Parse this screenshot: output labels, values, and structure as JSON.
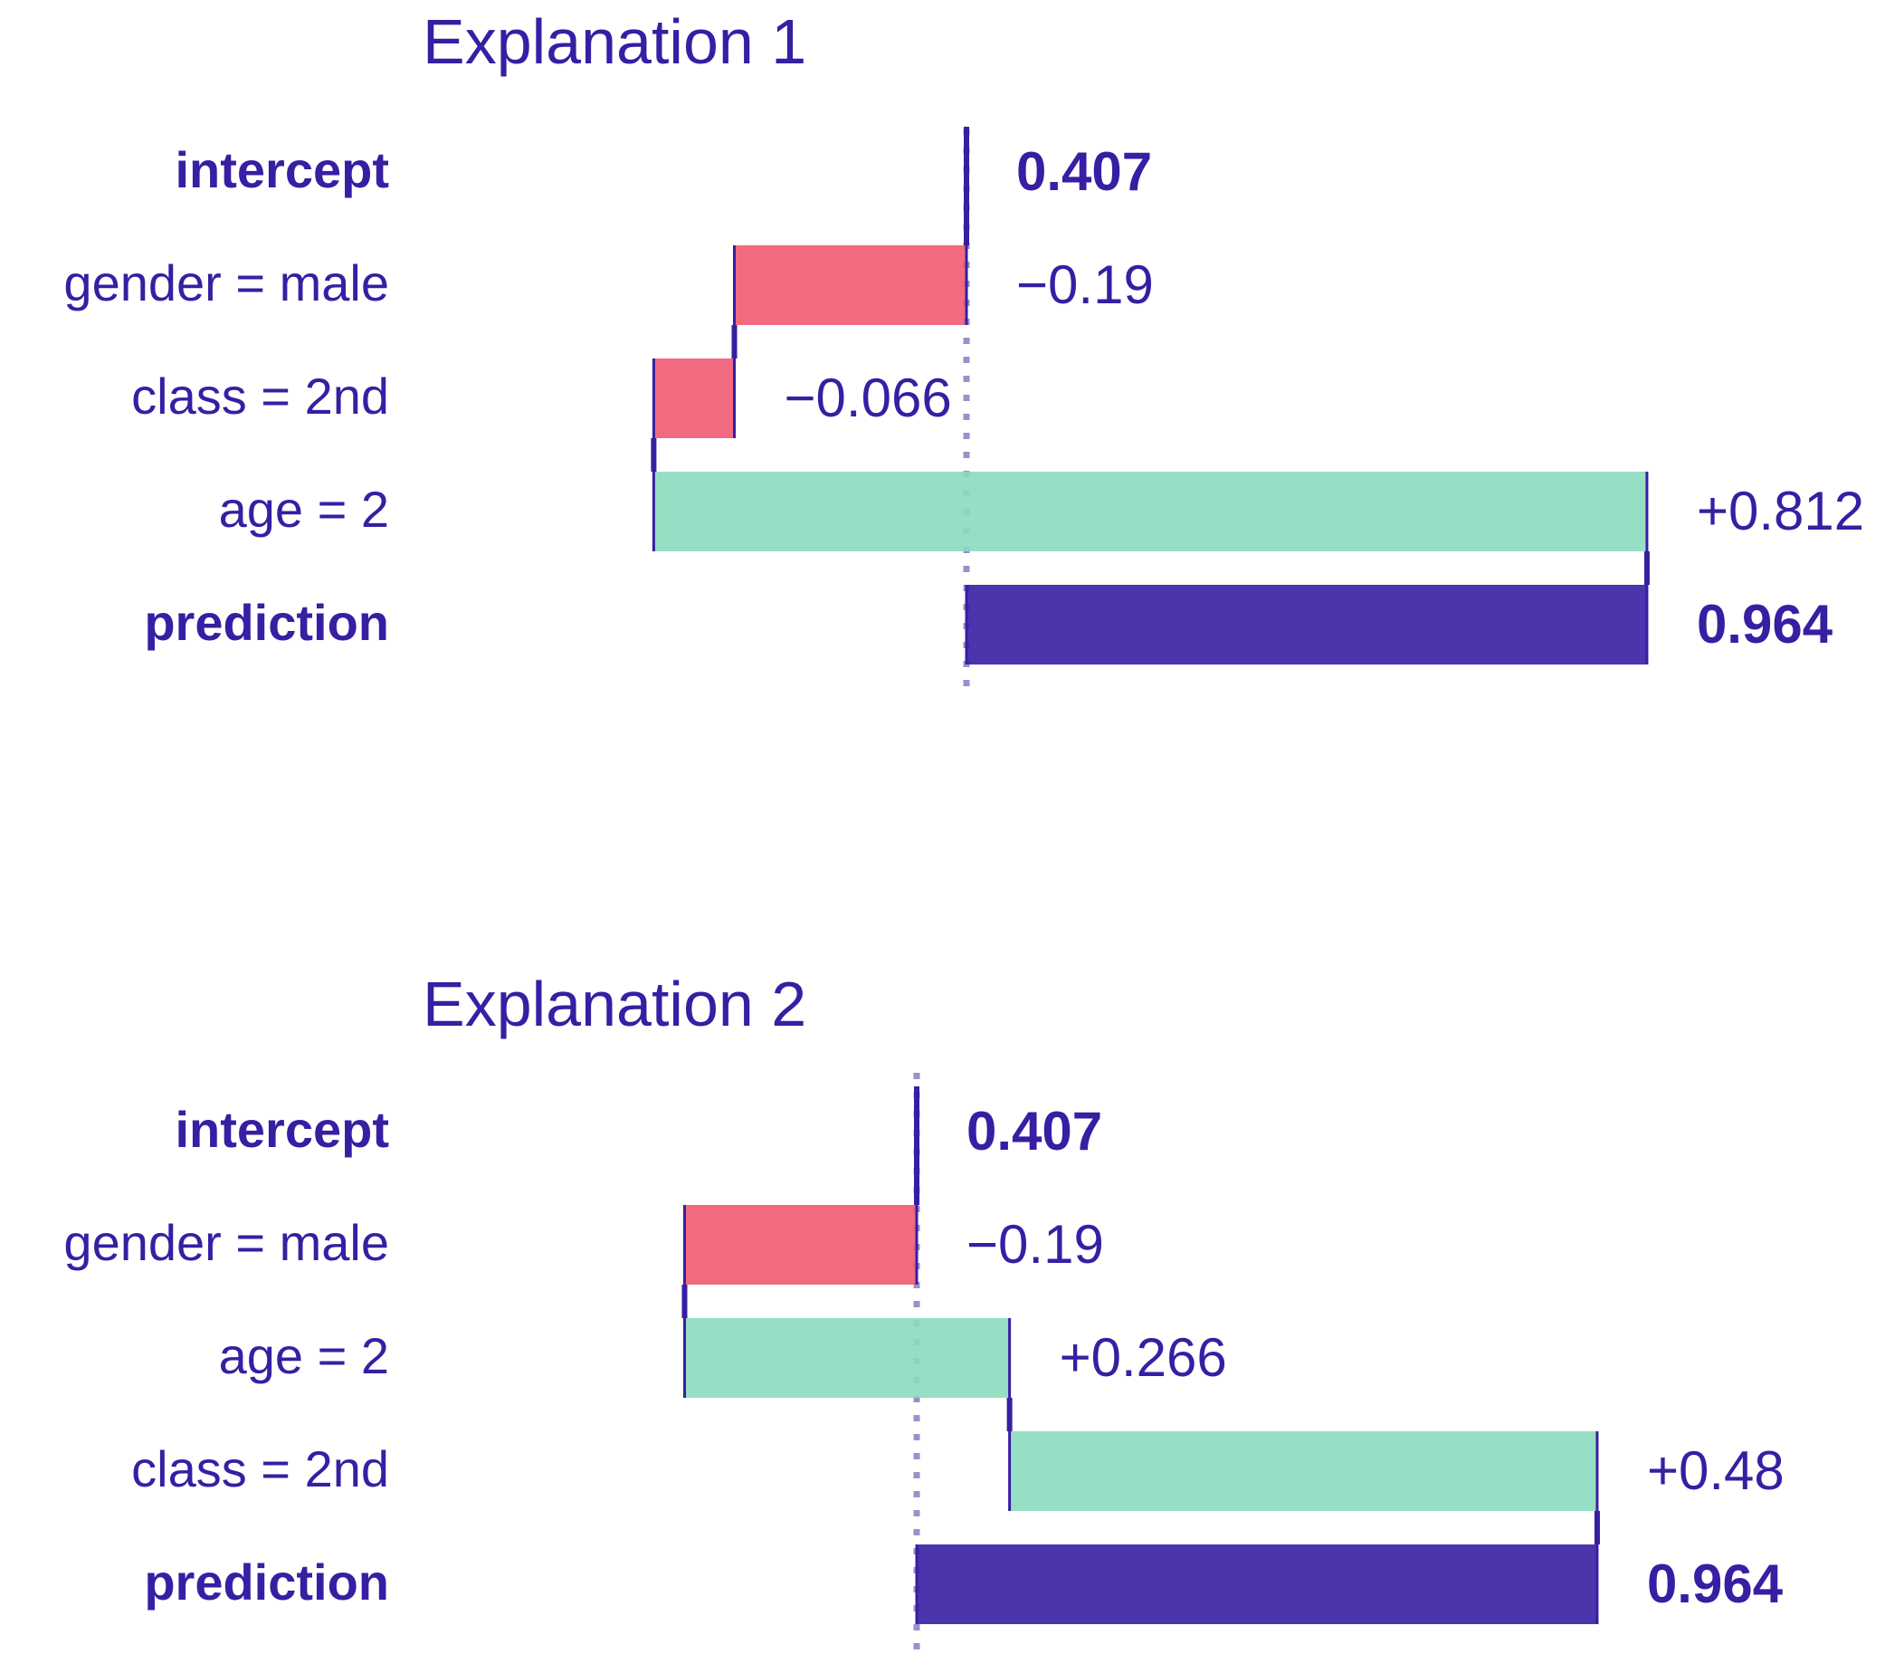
{
  "colors": {
    "text": "#371ea3",
    "negative": "#f05a71",
    "positive": "#8bdcbe",
    "prediction": "#371ea3",
    "reference_line": "#9a90cc",
    "connector": "#371ea3"
  },
  "chart_data": [
    {
      "type": "bar",
      "subtype": "break-down",
      "title": "Explanation 1",
      "xlim": [
        0.35,
        1.0
      ],
      "rows": [
        {
          "label": "intercept",
          "kind": "intercept",
          "start": 0.407,
          "end": 0.407,
          "value_label": "0.407",
          "bold": true
        },
        {
          "label": "gender = male",
          "kind": "negative",
          "start": 0.407,
          "end": 0.217,
          "value_label": "−0.19",
          "bold": false
        },
        {
          "label": "class = 2nd",
          "kind": "negative",
          "start": 0.217,
          "end": 0.151,
          "value_label": "−0.066",
          "bold": false
        },
        {
          "label": "age = 2",
          "kind": "positive",
          "start": 0.151,
          "end": 0.964,
          "value_label": "+0.812",
          "bold": false
        },
        {
          "label": "prediction",
          "kind": "prediction",
          "start": 0.407,
          "end": 0.964,
          "value_label": "0.964",
          "bold": true
        }
      ]
    },
    {
      "type": "bar",
      "subtype": "break-down",
      "title": "Explanation 2",
      "xlim": [
        0.35,
        1.0
      ],
      "rows": [
        {
          "label": "intercept",
          "kind": "intercept",
          "start": 0.407,
          "end": 0.407,
          "value_label": "0.407",
          "bold": true
        },
        {
          "label": "gender = male",
          "kind": "negative",
          "start": 0.407,
          "end": 0.217,
          "value_label": "−0.19",
          "bold": false
        },
        {
          "label": "age = 2",
          "kind": "positive",
          "start": 0.217,
          "end": 0.483,
          "value_label": "+0.266",
          "bold": false
        },
        {
          "label": "class = 2nd",
          "kind": "positive",
          "start": 0.483,
          "end": 0.964,
          "value_label": "+0.48",
          "bold": false
        },
        {
          "label": "prediction",
          "kind": "prediction",
          "start": 0.407,
          "end": 0.964,
          "value_label": "0.964",
          "bold": true
        }
      ]
    }
  ]
}
